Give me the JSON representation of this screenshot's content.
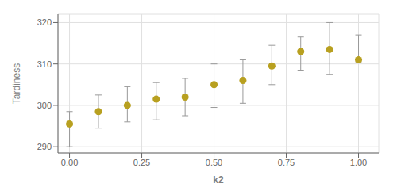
{
  "chart_data": {
    "type": "scatter",
    "xlabel": "k2",
    "ylabel": "Tardiness",
    "x": [
      0.0,
      0.1,
      0.2,
      0.3,
      0.4,
      0.5,
      0.6,
      0.7,
      0.8,
      0.9,
      1.0
    ],
    "values": [
      295.5,
      298.5,
      300.0,
      301.5,
      302.0,
      305.0,
      306.0,
      309.5,
      313.0,
      313.5,
      311.0
    ],
    "color": "#b8a020",
    "marker": "circle",
    "error_bars": {
      "lower": [
        290.0,
        294.5,
        296.0,
        296.5,
        297.5,
        299.5,
        300.5,
        305.0,
        308.5,
        307.5,
        310.5
      ],
      "upper": [
        298.5,
        302.5,
        304.5,
        305.5,
        306.5,
        310.0,
        311.0,
        314.5,
        316.5,
        320.0,
        317.0
      ],
      "color": "#999999"
    },
    "xlim": [
      -0.04,
      1.07
    ],
    "ylim": [
      288.5,
      322
    ],
    "xticks": [
      {
        "value": 0.0,
        "label": "0.00"
      },
      {
        "value": 0.25,
        "label": "0.25"
      },
      {
        "value": 0.5,
        "label": "0.50"
      },
      {
        "value": 0.75,
        "label": "0.75"
      },
      {
        "value": 1.0,
        "label": "1.00"
      }
    ],
    "yticks": [
      290,
      300,
      310,
      320
    ],
    "grid": true
  }
}
